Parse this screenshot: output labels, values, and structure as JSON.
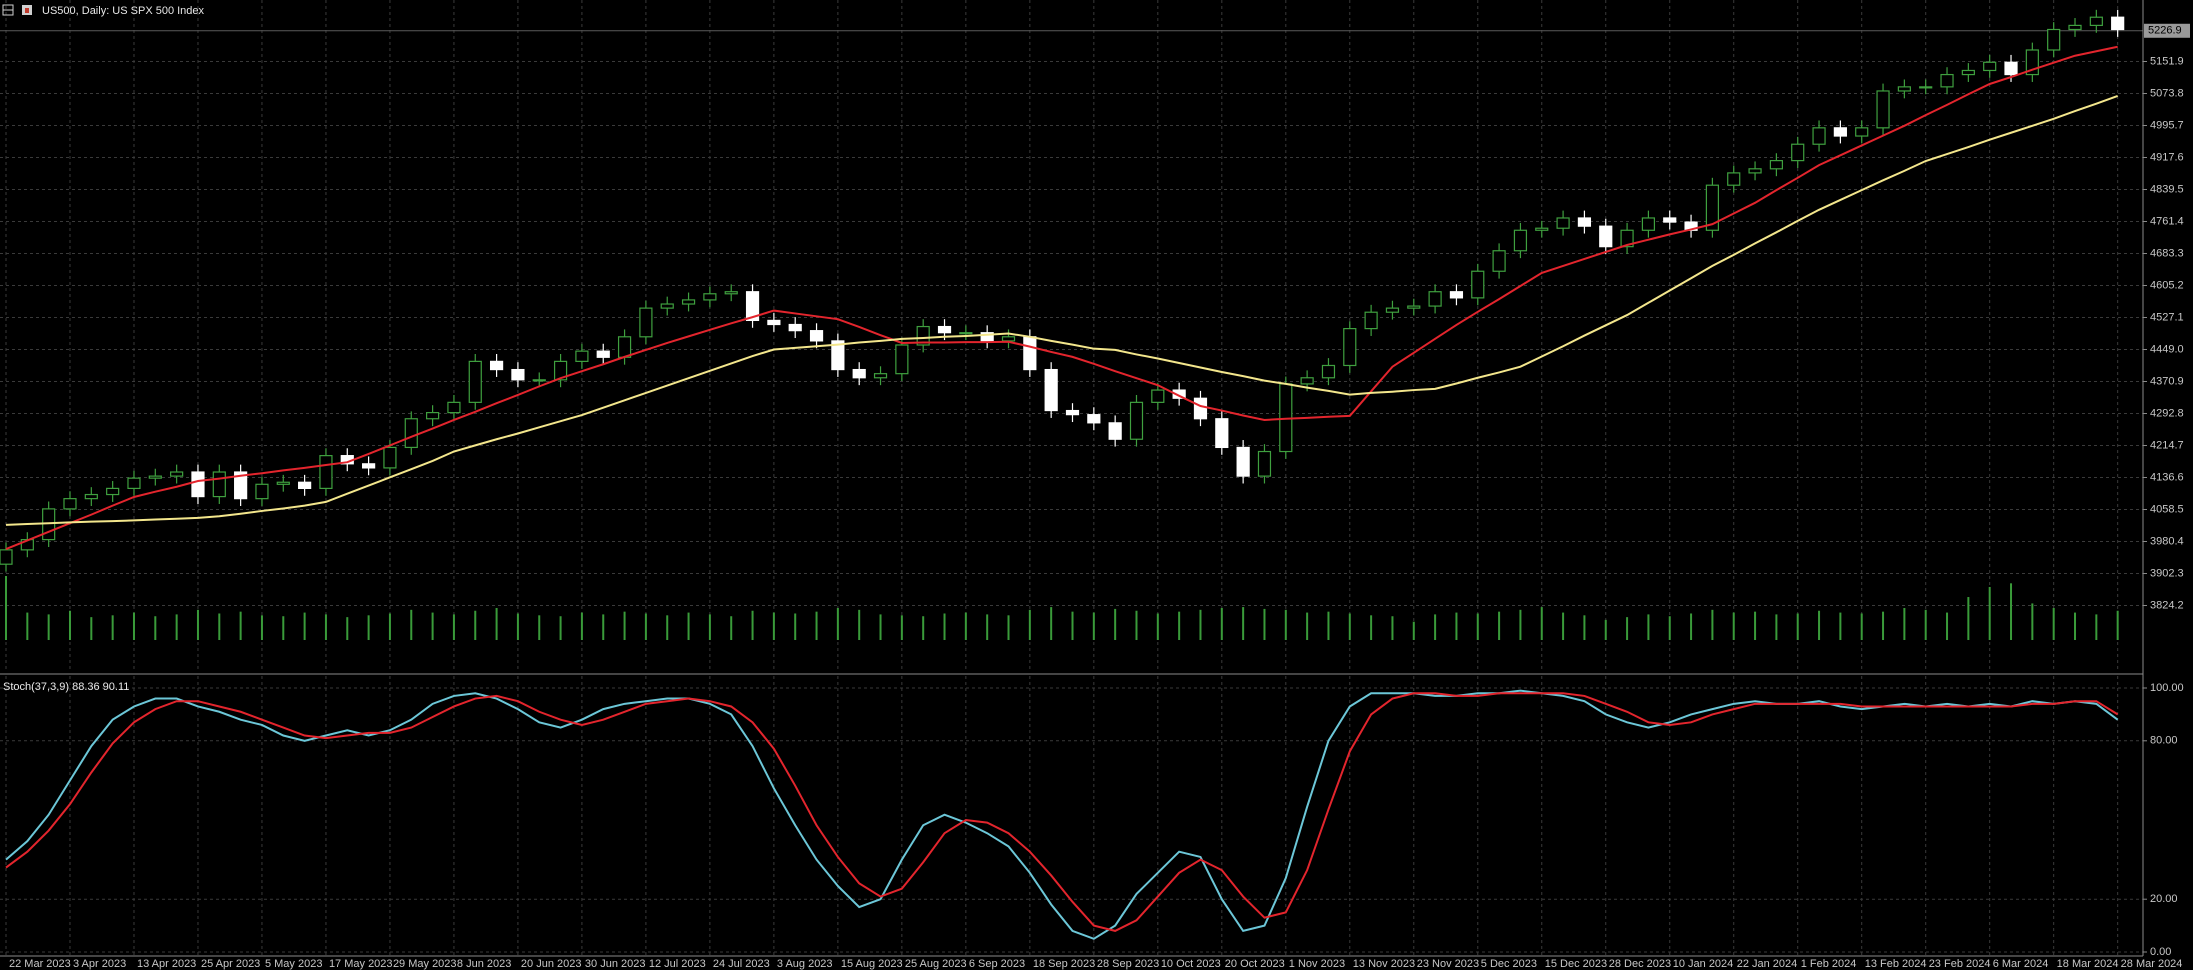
{
  "chart_data": [
    {
      "type": "candlestick",
      "title": "US500, Daily:  US SPX 500 Index",
      "categories": [
        "22 Mar 2023",
        null,
        null,
        "3 Apr 2023",
        null,
        null,
        "13 Apr 2023",
        null,
        null,
        "25 Apr 2023",
        null,
        null,
        "5 May 2023",
        null,
        null,
        "17 May 2023",
        null,
        null,
        "29 May 2023",
        null,
        null,
        "8 Jun 2023",
        null,
        null,
        "20 Jun 2023",
        null,
        null,
        "30 Jun 2023",
        null,
        null,
        "12 Jul 2023",
        null,
        null,
        "24 Jul 2023",
        null,
        null,
        "3 Aug 2023",
        null,
        null,
        "15 Aug 2023",
        null,
        null,
        "25 Aug 2023",
        null,
        null,
        "6 Sep 2023",
        null,
        null,
        "18 Sep 2023",
        null,
        null,
        "28 Sep 2023",
        null,
        null,
        "10 Oct 2023",
        null,
        null,
        "20 Oct 2023",
        null,
        null,
        "1 Nov 2023",
        null,
        null,
        "13 Nov 2023",
        null,
        null,
        "23 Nov 2023",
        null,
        null,
        "5 Dec 2023",
        null,
        null,
        "15 Dec 2023",
        null,
        null,
        "28 Dec 2023",
        null,
        null,
        "10 Jan 2024",
        null,
        null,
        "22 Jan 2024",
        null,
        null,
        "1 Feb 2024",
        null,
        null,
        "13 Feb 2024",
        null,
        null,
        "23 Feb 2024",
        null,
        null,
        "6 Mar 2024",
        null,
        null,
        "18 Mar 2024",
        null,
        null,
        "28 Mar 2024"
      ],
      "open": [
        3925,
        3960,
        3985,
        4060,
        4085,
        4095,
        4110,
        4135,
        4140,
        4150,
        4090,
        4150,
        4085,
        4120,
        4125,
        4110,
        4190,
        4170,
        4160,
        4210,
        4280,
        4295,
        4320,
        4420,
        4400,
        4375,
        4375,
        4420,
        4445,
        4430,
        4480,
        4550,
        4560,
        4570,
        4585,
        4590,
        4520,
        4510,
        4495,
        4470,
        4400,
        4380,
        4390,
        4460,
        4505,
        4490,
        4490,
        4470,
        4480,
        4400,
        4300,
        4290,
        4270,
        4230,
        4320,
        4350,
        4330,
        4280,
        4210,
        4140,
        4200,
        4365,
        4380,
        4410,
        4500,
        4540,
        4550,
        4555,
        4590,
        4575,
        4640,
        4690,
        4740,
        4745,
        4770,
        4750,
        4700,
        4740,
        4770,
        4760,
        4740,
        4850,
        4880,
        4890,
        4910,
        4950,
        4990,
        4970,
        4990,
        5080,
        5090,
        5090,
        5120,
        5130,
        5150,
        5120,
        5180,
        5230,
        5240,
        5260
      ],
      "high": [
        3978,
        4003,
        4078,
        4103,
        4113,
        4128,
        4153,
        4158,
        4168,
        4168,
        4168,
        4168,
        4138,
        4143,
        4143,
        4208,
        4208,
        4188,
        4228,
        4298,
        4313,
        4338,
        4438,
        4438,
        4418,
        4393,
        4438,
        4463,
        4463,
        4498,
        4568,
        4578,
        4588,
        4603,
        4608,
        4608,
        4538,
        4528,
        4513,
        4488,
        4418,
        4408,
        4478,
        4523,
        4523,
        4508,
        4508,
        4498,
        4498,
        4418,
        4318,
        4308,
        4288,
        4338,
        4368,
        4368,
        4348,
        4298,
        4228,
        4218,
        4383,
        4398,
        4428,
        4518,
        4558,
        4568,
        4573,
        4608,
        4608,
        4658,
        4708,
        4758,
        4763,
        4788,
        4788,
        4768,
        4758,
        4788,
        4788,
        4778,
        4868,
        4898,
        4908,
        4928,
        4968,
        5008,
        5008,
        5008,
        5098,
        5108,
        5108,
        5138,
        5148,
        5168,
        5168,
        5198,
        5248,
        5258,
        5278,
        5278
      ],
      "low": [
        3907,
        3942,
        3967,
        4042,
        4067,
        4077,
        4092,
        4117,
        4122,
        4072,
        4072,
        4067,
        4067,
        4102,
        4092,
        4092,
        4152,
        4142,
        4142,
        4192,
        4262,
        4277,
        4302,
        4382,
        4357,
        4357,
        4357,
        4402,
        4412,
        4412,
        4462,
        4532,
        4542,
        4552,
        4567,
        4502,
        4492,
        4477,
        4452,
        4382,
        4362,
        4362,
        4372,
        4442,
        4472,
        4472,
        4452,
        4452,
        4382,
        4282,
        4272,
        4252,
        4212,
        4212,
        4302,
        4312,
        4262,
        4192,
        4122,
        4122,
        4182,
        4347,
        4362,
        4392,
        4482,
        4522,
        4532,
        4537,
        4557,
        4557,
        4622,
        4672,
        4722,
        4727,
        4732,
        4682,
        4682,
        4722,
        4742,
        4722,
        4722,
        4832,
        4862,
        4872,
        4892,
        4932,
        4952,
        4952,
        4972,
        5062,
        5072,
        5072,
        5102,
        5112,
        5102,
        5102,
        5162,
        5212,
        5222,
        5212
      ],
      "close": [
        3960,
        3985,
        4060,
        4085,
        4095,
        4110,
        4135,
        4140,
        4150,
        4090,
        4150,
        4085,
        4120,
        4125,
        4110,
        4190,
        4170,
        4160,
        4210,
        4280,
        4295,
        4320,
        4420,
        4400,
        4375,
        4375,
        4420,
        4445,
        4430,
        4480,
        4550,
        4560,
        4570,
        4585,
        4590,
        4520,
        4510,
        4495,
        4470,
        4400,
        4380,
        4390,
        4460,
        4505,
        4490,
        4490,
        4470,
        4480,
        4400,
        4300,
        4290,
        4270,
        4230,
        4320,
        4350,
        4330,
        4280,
        4210,
        4140,
        4200,
        4365,
        4380,
        4410,
        4500,
        4540,
        4550,
        4555,
        4590,
        4575,
        4640,
        4690,
        4740,
        4745,
        4770,
        4750,
        4700,
        4740,
        4770,
        4760,
        4740,
        4850,
        4880,
        4890,
        4910,
        4950,
        4990,
        4970,
        4990,
        5080,
        5090,
        5090,
        5120,
        5130,
        5150,
        5120,
        5180,
        5230,
        5240,
        5260,
        5230
      ],
      "up_color": "#3fa03f",
      "down_color": "#ffffff",
      "series": [
        {
          "color": "#e3252d",
          "values": [
            3962,
            3983,
            4004,
            4025,
            4046,
            4068,
            4089,
            4102,
            4114,
            4128,
            4134,
            4141,
            4147,
            4154,
            4160,
            4167,
            4174,
            4194,
            4215,
            4236,
            4256,
            4277,
            4297,
            4318,
            4338,
            4359,
            4379,
            4396,
            4413,
            4431,
            4448,
            4465,
            4481,
            4497,
            4513,
            4528,
            4544,
            4537,
            4530,
            4523,
            4504,
            4484,
            4465,
            4466,
            4466,
            4467,
            4467,
            4468,
            4456,
            4443,
            4431,
            4414,
            4396,
            4379,
            4362,
            4336,
            4311,
            4300,
            4288,
            4277,
            4280,
            4282,
            4285,
            4287,
            4347,
            4407,
            4441,
            4475,
            4509,
            4541,
            4572,
            4604,
            4636,
            4653,
            4670,
            4687,
            4704,
            4717,
            4730,
            4742,
            4755,
            4781,
            4807,
            4838,
            4868,
            4899,
            4923,
            4947,
            4971,
            4995,
            5021,
            5046,
            5072,
            5097,
            5114,
            5132,
            5149,
            5166,
            5177,
            5188
          ]
        },
        {
          "color": "#f3e68c",
          "values": [
            4021,
            4023,
            4025,
            4027,
            4029,
            4030,
            4032,
            4034,
            4036,
            4038,
            4042,
            4048,
            4055,
            4061,
            4068,
            4077,
            4097,
            4117,
            4137,
            4157,
            4177,
            4200,
            4215,
            4230,
            4244,
            4259,
            4274,
            4289,
            4307,
            4325,
            4343,
            4361,
            4379,
            4397,
            4415,
            4433,
            4449,
            4453,
            4457,
            4461,
            4466,
            4470,
            4475,
            4477,
            4480,
            4482,
            4485,
            4488,
            4480,
            4470,
            4461,
            4451,
            4448,
            4437,
            4427,
            4416,
            4405,
            4394,
            4384,
            4373,
            4365,
            4356,
            4348,
            4339,
            4343,
            4346,
            4350,
            4353,
            4366,
            4380,
            4393,
            4407,
            4432,
            4457,
            4483,
            4508,
            4533,
            4563,
            4593,
            4623,
            4653,
            4680,
            4708,
            4735,
            4763,
            4790,
            4814,
            4838,
            4862,
            4885,
            4909,
            4926,
            4943,
            4961,
            4978,
            4995,
            5012,
            5031,
            5049,
            5068
          ]
        }
      ],
      "volume": [
        70,
        30,
        28,
        32,
        25,
        27,
        30,
        26,
        28,
        33,
        29,
        31,
        27,
        26,
        30,
        28,
        25,
        27,
        29,
        33,
        30,
        28,
        32,
        35,
        29,
        27,
        26,
        30,
        28,
        31,
        29,
        27,
        30,
        28,
        26,
        32,
        30,
        29,
        31,
        35,
        33,
        28,
        27,
        26,
        29,
        30,
        28,
        27,
        33,
        36,
        31,
        30,
        34,
        32,
        29,
        31,
        33,
        35,
        36,
        34,
        33,
        30,
        31,
        29,
        27,
        26,
        20,
        28,
        30,
        29,
        31,
        33,
        36,
        30,
        27,
        22,
        25,
        28,
        26,
        29,
        33,
        30,
        31,
        28,
        29,
        32,
        30,
        29,
        31,
        35,
        33,
        30,
        47,
        58,
        62,
        40,
        35,
        30,
        28,
        32
      ],
      "volume_color": "#3a9b3a",
      "ylim": [
        3740,
        5302
      ],
      "yticks": [
        5151.9,
        5073.8,
        4995.7,
        4917.6,
        4839.5,
        4761.4,
        4683.3,
        4605.2,
        4527.1,
        {
          "value": 4449,
          "label": "4449.0"
        },
        4370.9,
        4292.8,
        4214.7,
        4136.6,
        4058.5,
        3980.4,
        3902.3,
        3824.2
      ],
      "last_price": 5226.9,
      "grid": true
    },
    {
      "type": "line",
      "title": "Stoch(37,3,9) 88.36 90.11",
      "series": [
        {
          "color": "#6cc7d8",
          "values": [
            35,
            42,
            52,
            65,
            78,
            88,
            93,
            96,
            96,
            93,
            91,
            88,
            86,
            82,
            80,
            82,
            84,
            82,
            84,
            88,
            94,
            97,
            98,
            96,
            92,
            87,
            85,
            88,
            92,
            94,
            95,
            96,
            96,
            94,
            90,
            78,
            62,
            48,
            35,
            25,
            17,
            20,
            35,
            48,
            52,
            49,
            45,
            40,
            30,
            18,
            8,
            5,
            10,
            22,
            30,
            38,
            36,
            20,
            8,
            10,
            28,
            55,
            80,
            93,
            98,
            98,
            98,
            97,
            97,
            98,
            98,
            99,
            98,
            97,
            95,
            90,
            87,
            85,
            87,
            90,
            92,
            94,
            95,
            94,
            94,
            95,
            93,
            92,
            93,
            94,
            93,
            94,
            93,
            94,
            93,
            95,
            94,
            95,
            94,
            88
          ]
        },
        {
          "color": "#e3252d",
          "values": [
            32,
            38,
            46,
            56,
            68,
            79,
            87,
            92,
            95,
            95,
            93,
            91,
            88,
            85,
            82,
            81,
            82,
            83,
            83,
            85,
            89,
            93,
            96,
            97,
            95,
            91,
            88,
            86,
            88,
            91,
            94,
            95,
            96,
            95,
            93,
            87,
            77,
            63,
            48,
            36,
            26,
            21,
            24,
            34,
            45,
            50,
            49,
            45,
            38,
            29,
            19,
            10,
            8,
            12,
            21,
            30,
            35,
            31,
            21,
            13,
            15,
            31,
            54,
            76,
            90,
            96,
            98,
            98,
            97,
            97,
            98,
            98,
            98,
            98,
            97,
            94,
            91,
            87,
            86,
            87,
            90,
            92,
            94,
            94,
            94,
            94,
            94,
            93,
            93,
            93,
            93,
            93,
            93,
            93,
            93,
            94,
            94,
            95,
            95,
            90
          ]
        }
      ],
      "ylim": [
        0,
        100
      ],
      "yticks": [
        {
          "value": 100,
          "label": "100.00"
        },
        {
          "value": 80,
          "label": "80.00"
        },
        {
          "value": 20,
          "label": "20.00"
        },
        {
          "value": 0,
          "label": "0.00"
        }
      ],
      "grid": true
    }
  ]
}
